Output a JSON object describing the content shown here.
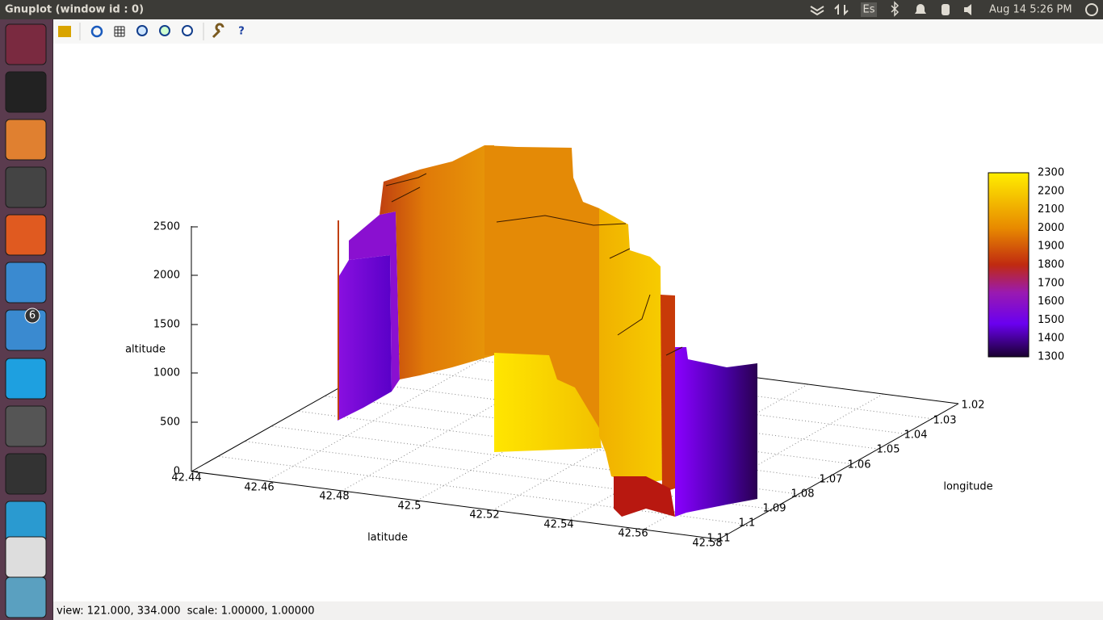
{
  "window": {
    "title": "Gnuplot (window id : 0)"
  },
  "panel": {
    "keyboard": "Es",
    "clock": "Aug 14 5:26 PM"
  },
  "launcher": {
    "mail_badge": 6
  },
  "toolbar": {
    "help": "?"
  },
  "plot": {
    "z_label": "altitude",
    "x_label": "latitude",
    "y_label": "longitude",
    "z_ticks": [
      0,
      500,
      1000,
      1500,
      2000,
      2500
    ],
    "x_ticks": [
      42.44,
      42.46,
      42.48,
      42.5,
      42.52,
      42.54,
      42.56,
      42.58
    ],
    "y_ticks": [
      1.02,
      1.03,
      1.04,
      1.05,
      1.06,
      1.07,
      1.08,
      1.09,
      1.1,
      1.11
    ],
    "colorbar_ticks": [
      2300,
      2200,
      2100,
      2000,
      1900,
      1800,
      1700,
      1600,
      1500,
      1400,
      1300
    ]
  },
  "status": "view: 121.000, 334.000  scale: 1.00000, 1.00000"
}
